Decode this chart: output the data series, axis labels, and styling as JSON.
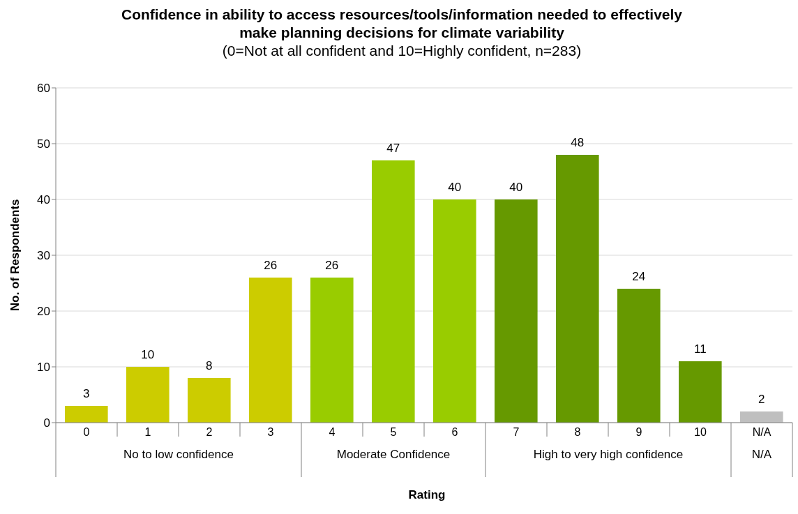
{
  "chart_data": {
    "type": "bar",
    "title": "Confidence in ability to access resources/tools/information needed to effectively make planning decisions for climate variability",
    "subtitle": "(0=Not at all confident and 10=Highly confident, n=283)",
    "xlabel": "Rating",
    "ylabel": "No. of Respondents",
    "categories": [
      "0",
      "1",
      "2",
      "3",
      "4",
      "5",
      "6",
      "7",
      "8",
      "9",
      "10",
      "N/A"
    ],
    "values": [
      3,
      10,
      8,
      26,
      26,
      47,
      40,
      40,
      48,
      24,
      11,
      2
    ],
    "colors": [
      "#cccc00",
      "#cccc00",
      "#cccc00",
      "#cccc00",
      "#99cc00",
      "#99cc00",
      "#99cc00",
      "#669900",
      "#669900",
      "#669900",
      "#669900",
      "#bfbfbf"
    ],
    "annotations": [
      "No to low confidence",
      "Moderate Confidence",
      "High to very high confidence",
      "N/A"
    ],
    "ylim": [
      0,
      60
    ],
    "yticks": [
      0,
      10,
      20,
      30,
      40,
      50,
      60
    ],
    "grid": "y",
    "data_labels": true
  }
}
